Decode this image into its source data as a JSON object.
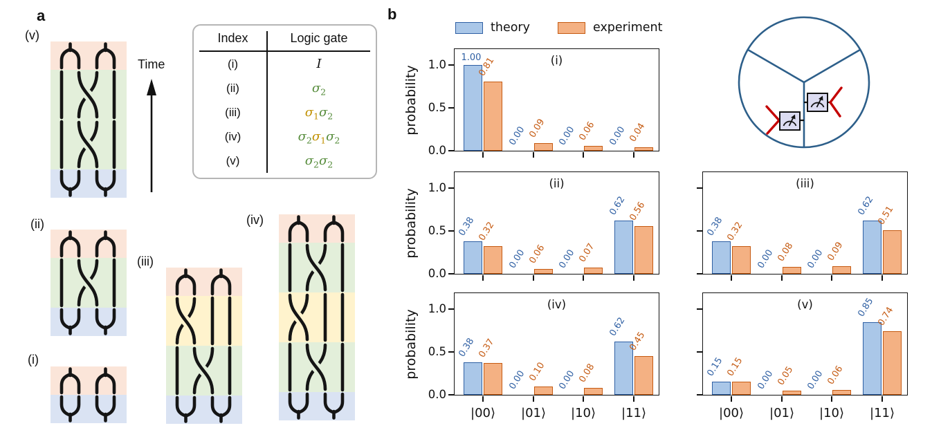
{
  "figure": {
    "panel_a_label": "a",
    "panel_b_label": "b"
  },
  "panel_a": {
    "time_arrow_label": "Time",
    "band_colors": {
      "pink": "#fbe5d9",
      "green": "#e3efda",
      "yellow": "#fff3cd",
      "blue": "#dae3f3"
    },
    "strand_color": "#151515",
    "braids": [
      {
        "label": "(v)",
        "bands": [
          {
            "type": "fuse",
            "color": "pink"
          },
          {
            "type": "sigma2",
            "color": "green"
          },
          {
            "type": "sigma2",
            "color": "green"
          },
          {
            "type": "create",
            "color": "blue"
          }
        ]
      },
      {
        "label": "(ii)",
        "bands": [
          {
            "type": "fuse",
            "color": "pink"
          },
          {
            "type": "sigma2",
            "color": "green"
          },
          {
            "type": "create",
            "color": "blue"
          }
        ]
      },
      {
        "label": "(iii)",
        "bands": [
          {
            "type": "fuse",
            "color": "pink"
          },
          {
            "type": "sigma1",
            "color": "yellow"
          },
          {
            "type": "sigma2",
            "color": "green"
          },
          {
            "type": "create",
            "color": "blue"
          }
        ]
      },
      {
        "label": "(i)",
        "bands": [
          {
            "type": "fuse",
            "color": "pink"
          },
          {
            "type": "create",
            "color": "blue"
          }
        ]
      },
      {
        "label": "(iv)",
        "bands": [
          {
            "type": "fuse",
            "color": "pink"
          },
          {
            "type": "sigma2",
            "color": "green"
          },
          {
            "type": "sigma1",
            "color": "yellow"
          },
          {
            "type": "sigma2",
            "color": "green"
          },
          {
            "type": "create",
            "color": "blue"
          }
        ]
      }
    ],
    "gate_table": {
      "headers": [
        "Index",
        "Logic gate"
      ],
      "token_colors": {
        "identity": "#111111",
        "sigma1": "#c09000",
        "sigma2": "#568c3b"
      },
      "rows": [
        {
          "index": "(i)",
          "gate": [
            {
              "sym": "I",
              "color": "identity"
            }
          ]
        },
        {
          "index": "(ii)",
          "gate": [
            {
              "sym": "σ",
              "sub": "2",
              "color": "sigma2"
            }
          ]
        },
        {
          "index": "(iii)",
          "gate": [
            {
              "sym": "σ",
              "sub": "1",
              "color": "sigma1"
            },
            {
              "sym": "σ",
              "sub": "2",
              "color": "sigma2"
            }
          ]
        },
        {
          "index": "(iv)",
          "gate": [
            {
              "sym": "σ",
              "sub": "2",
              "color": "sigma2"
            },
            {
              "sym": "σ",
              "sub": "1",
              "color": "sigma1"
            },
            {
              "sym": "σ",
              "sub": "2",
              "color": "sigma2"
            }
          ]
        },
        {
          "index": "(v)",
          "gate": [
            {
              "sym": "σ",
              "sub": "2",
              "color": "sigma2"
            },
            {
              "sym": "σ",
              "sub": "2",
              "color": "sigma2"
            }
          ]
        }
      ]
    }
  },
  "panel_b": {
    "legend": [
      {
        "label": "theory",
        "fill": "#aac7e8",
        "edge": "#2e5fa3"
      },
      {
        "label": "experiment",
        "fill": "#f4b183",
        "edge": "#c55a11"
      }
    ],
    "ylabel": "probability",
    "ytick_labels": [
      "0.0",
      "0.5",
      "1.0"
    ],
    "xtick_labels": [
      "|00⟩",
      "|01⟩",
      "|10⟩",
      "|11⟩"
    ],
    "apparatus": {
      "circle_color": "#2d5f8a",
      "meter_fill": "#dcdcf2",
      "meter_edge": "#111111",
      "needle_color": "#111111",
      "lead_color": "#c40000"
    }
  },
  "chart_data": [
    {
      "type": "bar",
      "title": "(i)",
      "categories": [
        "|00⟩",
        "|01⟩",
        "|10⟩",
        "|11⟩"
      ],
      "ylabel": "probability",
      "ylim": [
        0,
        1.2
      ],
      "yticks": [
        0.0,
        0.5,
        1.0
      ],
      "series": [
        {
          "name": "theory",
          "values": [
            1.0,
            0.0,
            0.0,
            0.0
          ]
        },
        {
          "name": "experiment",
          "values": [
            0.81,
            0.09,
            0.06,
            0.04
          ]
        }
      ]
    },
    {
      "type": "bar",
      "title": "(ii)",
      "categories": [
        "|00⟩",
        "|01⟩",
        "|10⟩",
        "|11⟩"
      ],
      "ylabel": "probability",
      "ylim": [
        0,
        1.2
      ],
      "yticks": [
        0.0,
        0.5,
        1.0
      ],
      "series": [
        {
          "name": "theory",
          "values": [
            0.38,
            0.0,
            0.0,
            0.62
          ]
        },
        {
          "name": "experiment",
          "values": [
            0.32,
            0.06,
            0.07,
            0.56
          ]
        }
      ]
    },
    {
      "type": "bar",
      "title": "(iii)",
      "categories": [
        "|00⟩",
        "|01⟩",
        "|10⟩",
        "|11⟩"
      ],
      "ylabel": "",
      "ylim": [
        0,
        1.2
      ],
      "yticks": [
        0.0,
        0.5,
        1.0
      ],
      "series": [
        {
          "name": "theory",
          "values": [
            0.38,
            0.0,
            0.0,
            0.62
          ]
        },
        {
          "name": "experiment",
          "values": [
            0.32,
            0.08,
            0.09,
            0.51
          ]
        }
      ]
    },
    {
      "type": "bar",
      "title": "(iv)",
      "categories": [
        "|00⟩",
        "|01⟩",
        "|10⟩",
        "|11⟩"
      ],
      "ylabel": "probability",
      "ylim": [
        0,
        1.2
      ],
      "yticks": [
        0.0,
        0.5,
        1.0
      ],
      "series": [
        {
          "name": "theory",
          "values": [
            0.38,
            0.0,
            0.0,
            0.62
          ]
        },
        {
          "name": "experiment",
          "values": [
            0.37,
            0.1,
            0.08,
            0.45
          ]
        }
      ]
    },
    {
      "type": "bar",
      "title": "(v)",
      "categories": [
        "|00⟩",
        "|01⟩",
        "|10⟩",
        "|11⟩"
      ],
      "ylabel": "",
      "ylim": [
        0,
        1.2
      ],
      "yticks": [
        0.0,
        0.5,
        1.0
      ],
      "series": [
        {
          "name": "theory",
          "values": [
            0.15,
            0.0,
            0.0,
            0.85
          ]
        },
        {
          "name": "experiment",
          "values": [
            0.15,
            0.05,
            0.06,
            0.74
          ]
        }
      ]
    }
  ]
}
